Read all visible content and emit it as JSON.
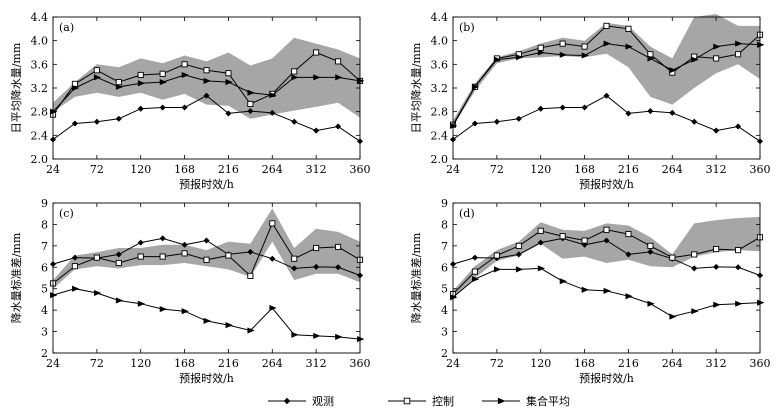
{
  "chart_data": [
    {
      "type": "line",
      "panel_label": "(a)",
      "xlabel": "预报时效/h",
      "ylabel": "日平均降水量/mm",
      "ylim": [
        2.0,
        4.4
      ],
      "y_ticks": [
        2.0,
        2.4,
        2.8,
        3.2,
        3.6,
        4.0,
        4.4
      ],
      "x_ticks": [
        24,
        72,
        120,
        168,
        216,
        264,
        312,
        360
      ],
      "x": [
        24,
        48,
        72,
        96,
        120,
        144,
        168,
        192,
        216,
        240,
        264,
        288,
        312,
        336,
        360
      ],
      "band": {
        "name": "集合成员范围",
        "lower": [
          2.8,
          3.05,
          3.12,
          3.05,
          3.12,
          3.0,
          3.1,
          2.92,
          2.9,
          2.68,
          2.75,
          2.82,
          2.88,
          2.95,
          2.7
        ],
        "upper": [
          2.95,
          3.3,
          3.6,
          3.55,
          3.7,
          3.62,
          3.75,
          3.65,
          3.8,
          3.58,
          3.7,
          4.05,
          3.95,
          3.85,
          3.7
        ]
      },
      "series": [
        {
          "name": "观测",
          "values": [
            2.33,
            2.6,
            2.63,
            2.68,
            2.85,
            2.87,
            2.87,
            3.07,
            2.77,
            2.81,
            2.78,
            2.63,
            2.48,
            2.55,
            2.3
          ]
        },
        {
          "name": "控制",
          "values": [
            2.75,
            3.27,
            3.5,
            3.3,
            3.42,
            3.44,
            3.6,
            3.5,
            3.45,
            2.93,
            3.1,
            3.48,
            3.8,
            3.65,
            3.32
          ]
        },
        {
          "name": "集合平均",
          "values": [
            2.8,
            3.2,
            3.38,
            3.22,
            3.28,
            3.3,
            3.42,
            3.32,
            3.3,
            3.12,
            3.08,
            3.38,
            3.38,
            3.38,
            3.32
          ]
        }
      ]
    },
    {
      "type": "line",
      "panel_label": "(b)",
      "xlabel": "预报时效/h",
      "ylabel": "日平均降水量/mm",
      "ylim": [
        2.0,
        4.4
      ],
      "y_ticks": [
        2.0,
        2.4,
        2.8,
        3.2,
        3.6,
        4.0,
        4.4
      ],
      "x_ticks": [
        24,
        72,
        120,
        168,
        216,
        264,
        312,
        360
      ],
      "x": [
        24,
        48,
        72,
        96,
        120,
        144,
        168,
        192,
        216,
        240,
        264,
        288,
        312,
        336,
        360
      ],
      "band": {
        "name": "集合成员范围",
        "lower": [
          2.55,
          3.15,
          3.62,
          3.7,
          3.72,
          3.74,
          3.72,
          3.78,
          3.55,
          3.05,
          2.92,
          3.2,
          3.45,
          3.6,
          3.35
        ],
        "upper": [
          2.65,
          3.28,
          3.72,
          3.82,
          3.95,
          4.05,
          4.0,
          4.3,
          4.25,
          3.9,
          3.7,
          4.4,
          4.45,
          4.25,
          4.25
        ]
      },
      "series": [
        {
          "name": "观测",
          "values": [
            2.33,
            2.6,
            2.63,
            2.68,
            2.85,
            2.87,
            2.87,
            3.07,
            2.77,
            2.81,
            2.78,
            2.63,
            2.48,
            2.55,
            2.3
          ]
        },
        {
          "name": "控制",
          "values": [
            2.58,
            3.22,
            3.7,
            3.77,
            3.88,
            3.95,
            3.9,
            4.25,
            4.2,
            3.77,
            3.46,
            3.73,
            3.7,
            3.77,
            4.1
          ]
        },
        {
          "name": "集合平均",
          "values": [
            2.56,
            3.22,
            3.68,
            3.72,
            3.8,
            3.76,
            3.75,
            3.95,
            3.9,
            3.7,
            3.5,
            3.68,
            3.9,
            3.95,
            3.93
          ]
        }
      ]
    },
    {
      "type": "line",
      "panel_label": "(c)",
      "xlabel": "预报时效/h",
      "ylabel": "降水量标准差/mm",
      "ylim": [
        2,
        9
      ],
      "y_ticks": [
        2,
        3,
        4,
        5,
        6,
        7,
        8,
        9
      ],
      "x_ticks": [
        24,
        72,
        120,
        168,
        216,
        264,
        312,
        360
      ],
      "x": [
        24,
        48,
        72,
        96,
        120,
        144,
        168,
        192,
        216,
        240,
        264,
        288,
        312,
        336,
        360
      ],
      "band": {
        "name": "集合成员范围",
        "lower": [
          5.0,
          5.9,
          6.05,
          5.95,
          6.1,
          6.1,
          6.2,
          6.05,
          5.9,
          5.55,
          7.2,
          5.4,
          5.7,
          5.7,
          5.3
        ],
        "upper": [
          5.4,
          6.55,
          6.7,
          6.9,
          6.9,
          7.05,
          7.05,
          6.8,
          7.2,
          7.1,
          8.75,
          6.9,
          7.8,
          7.65,
          7.2
        ]
      },
      "series": [
        {
          "name": "观测",
          "values": [
            6.15,
            6.45,
            6.43,
            6.6,
            7.15,
            7.35,
            7.05,
            7.25,
            6.6,
            6.72,
            6.4,
            5.95,
            6.02,
            6.0,
            5.62
          ]
        },
        {
          "name": "控制",
          "values": [
            5.25,
            6.05,
            6.45,
            6.2,
            6.5,
            6.5,
            6.65,
            6.35,
            6.55,
            5.6,
            8.05,
            6.4,
            6.9,
            6.95,
            6.35
          ]
        },
        {
          "name": "集合平均",
          "values": [
            4.7,
            5.0,
            4.8,
            4.45,
            4.3,
            4.05,
            3.95,
            3.5,
            3.3,
            3.05,
            4.1,
            2.85,
            2.8,
            2.75,
            2.65
          ]
        }
      ]
    },
    {
      "type": "line",
      "panel_label": "(d)",
      "xlabel": "预报时效/h",
      "ylabel": "降水量标准差/mm",
      "ylim": [
        2,
        9
      ],
      "y_ticks": [
        2,
        3,
        4,
        5,
        6,
        7,
        8,
        9
      ],
      "x_ticks": [
        24,
        72,
        120,
        168,
        216,
        264,
        312,
        360
      ],
      "x": [
        24,
        48,
        72,
        96,
        120,
        144,
        168,
        192,
        216,
        240,
        264,
        288,
        312,
        336,
        360
      ],
      "band": {
        "name": "集合成员范围",
        "lower": [
          4.6,
          5.5,
          6.3,
          6.55,
          7.1,
          6.4,
          6.5,
          6.2,
          6.35,
          6.05,
          6.0,
          6.5,
          6.7,
          6.8,
          6.75
        ],
        "upper": [
          4.9,
          6.05,
          6.8,
          7.2,
          8.1,
          7.75,
          7.7,
          8.05,
          7.95,
          7.4,
          6.6,
          8.05,
          8.2,
          8.3,
          8.35
        ]
      },
      "series": [
        {
          "name": "观测",
          "values": [
            6.15,
            6.45,
            6.43,
            6.6,
            7.15,
            7.35,
            7.05,
            7.25,
            6.6,
            6.72,
            6.4,
            5.95,
            6.02,
            6.0,
            5.62
          ]
        },
        {
          "name": "控制",
          "values": [
            4.75,
            5.8,
            6.55,
            7.0,
            7.7,
            7.45,
            7.25,
            7.75,
            7.55,
            7.0,
            6.45,
            6.6,
            6.85,
            6.8,
            7.4
          ]
        },
        {
          "name": "集合平均",
          "values": [
            4.6,
            5.45,
            5.9,
            5.9,
            5.95,
            5.35,
            4.95,
            4.9,
            4.65,
            4.3,
            3.7,
            3.95,
            4.25,
            4.3,
            4.35
          ]
        }
      ]
    }
  ],
  "legend": {
    "position": "bottom-center",
    "items": [
      {
        "label": "观测",
        "marker": "diamond"
      },
      {
        "label": "控制",
        "marker": "square"
      },
      {
        "label": "集合平均",
        "marker": "triangle-right"
      }
    ]
  },
  "colors": {
    "line": "#000000",
    "band": "#a6a6a6",
    "axis": "#000000",
    "background": "#ffffff"
  }
}
